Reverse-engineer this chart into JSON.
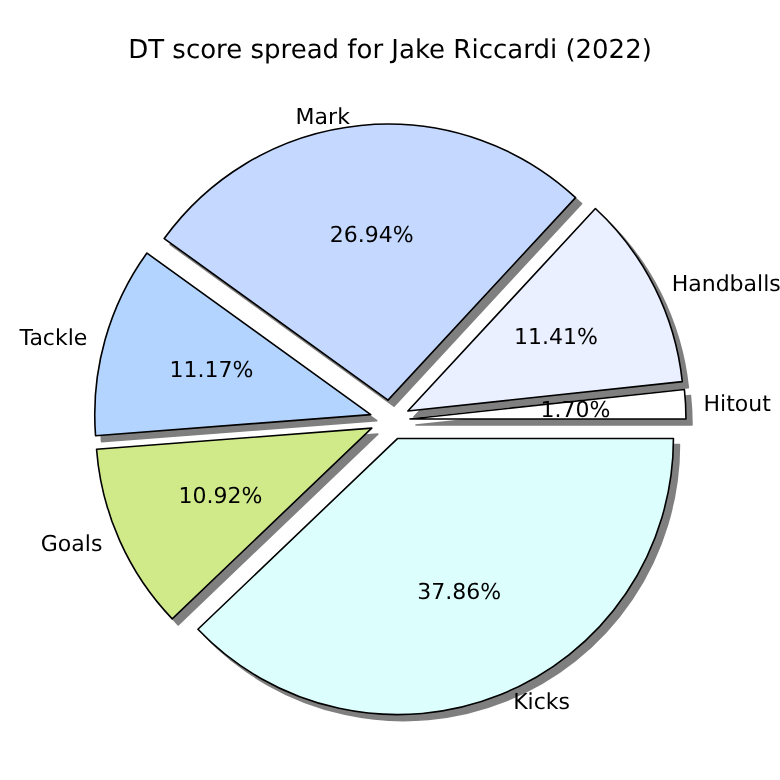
{
  "chart_data": {
    "type": "pie",
    "title": "DT score spread for Jake Riccardi (2022)",
    "categories": [
      "Hitout",
      "Handballs",
      "Mark",
      "Tackle",
      "Goals",
      "Kicks"
    ],
    "values": [
      1.7,
      11.41,
      26.94,
      11.17,
      10.92,
      37.86
    ],
    "value_labels": [
      "1.70%",
      "11.41%",
      "26.94%",
      "11.17%",
      "10.92%",
      "37.86%"
    ],
    "colors": [
      "#ffffff",
      "#eaf0ff",
      "#c5d8ff",
      "#b3d4ff",
      "#d0ea8a",
      "#dcfffe"
    ],
    "legend": false
  }
}
